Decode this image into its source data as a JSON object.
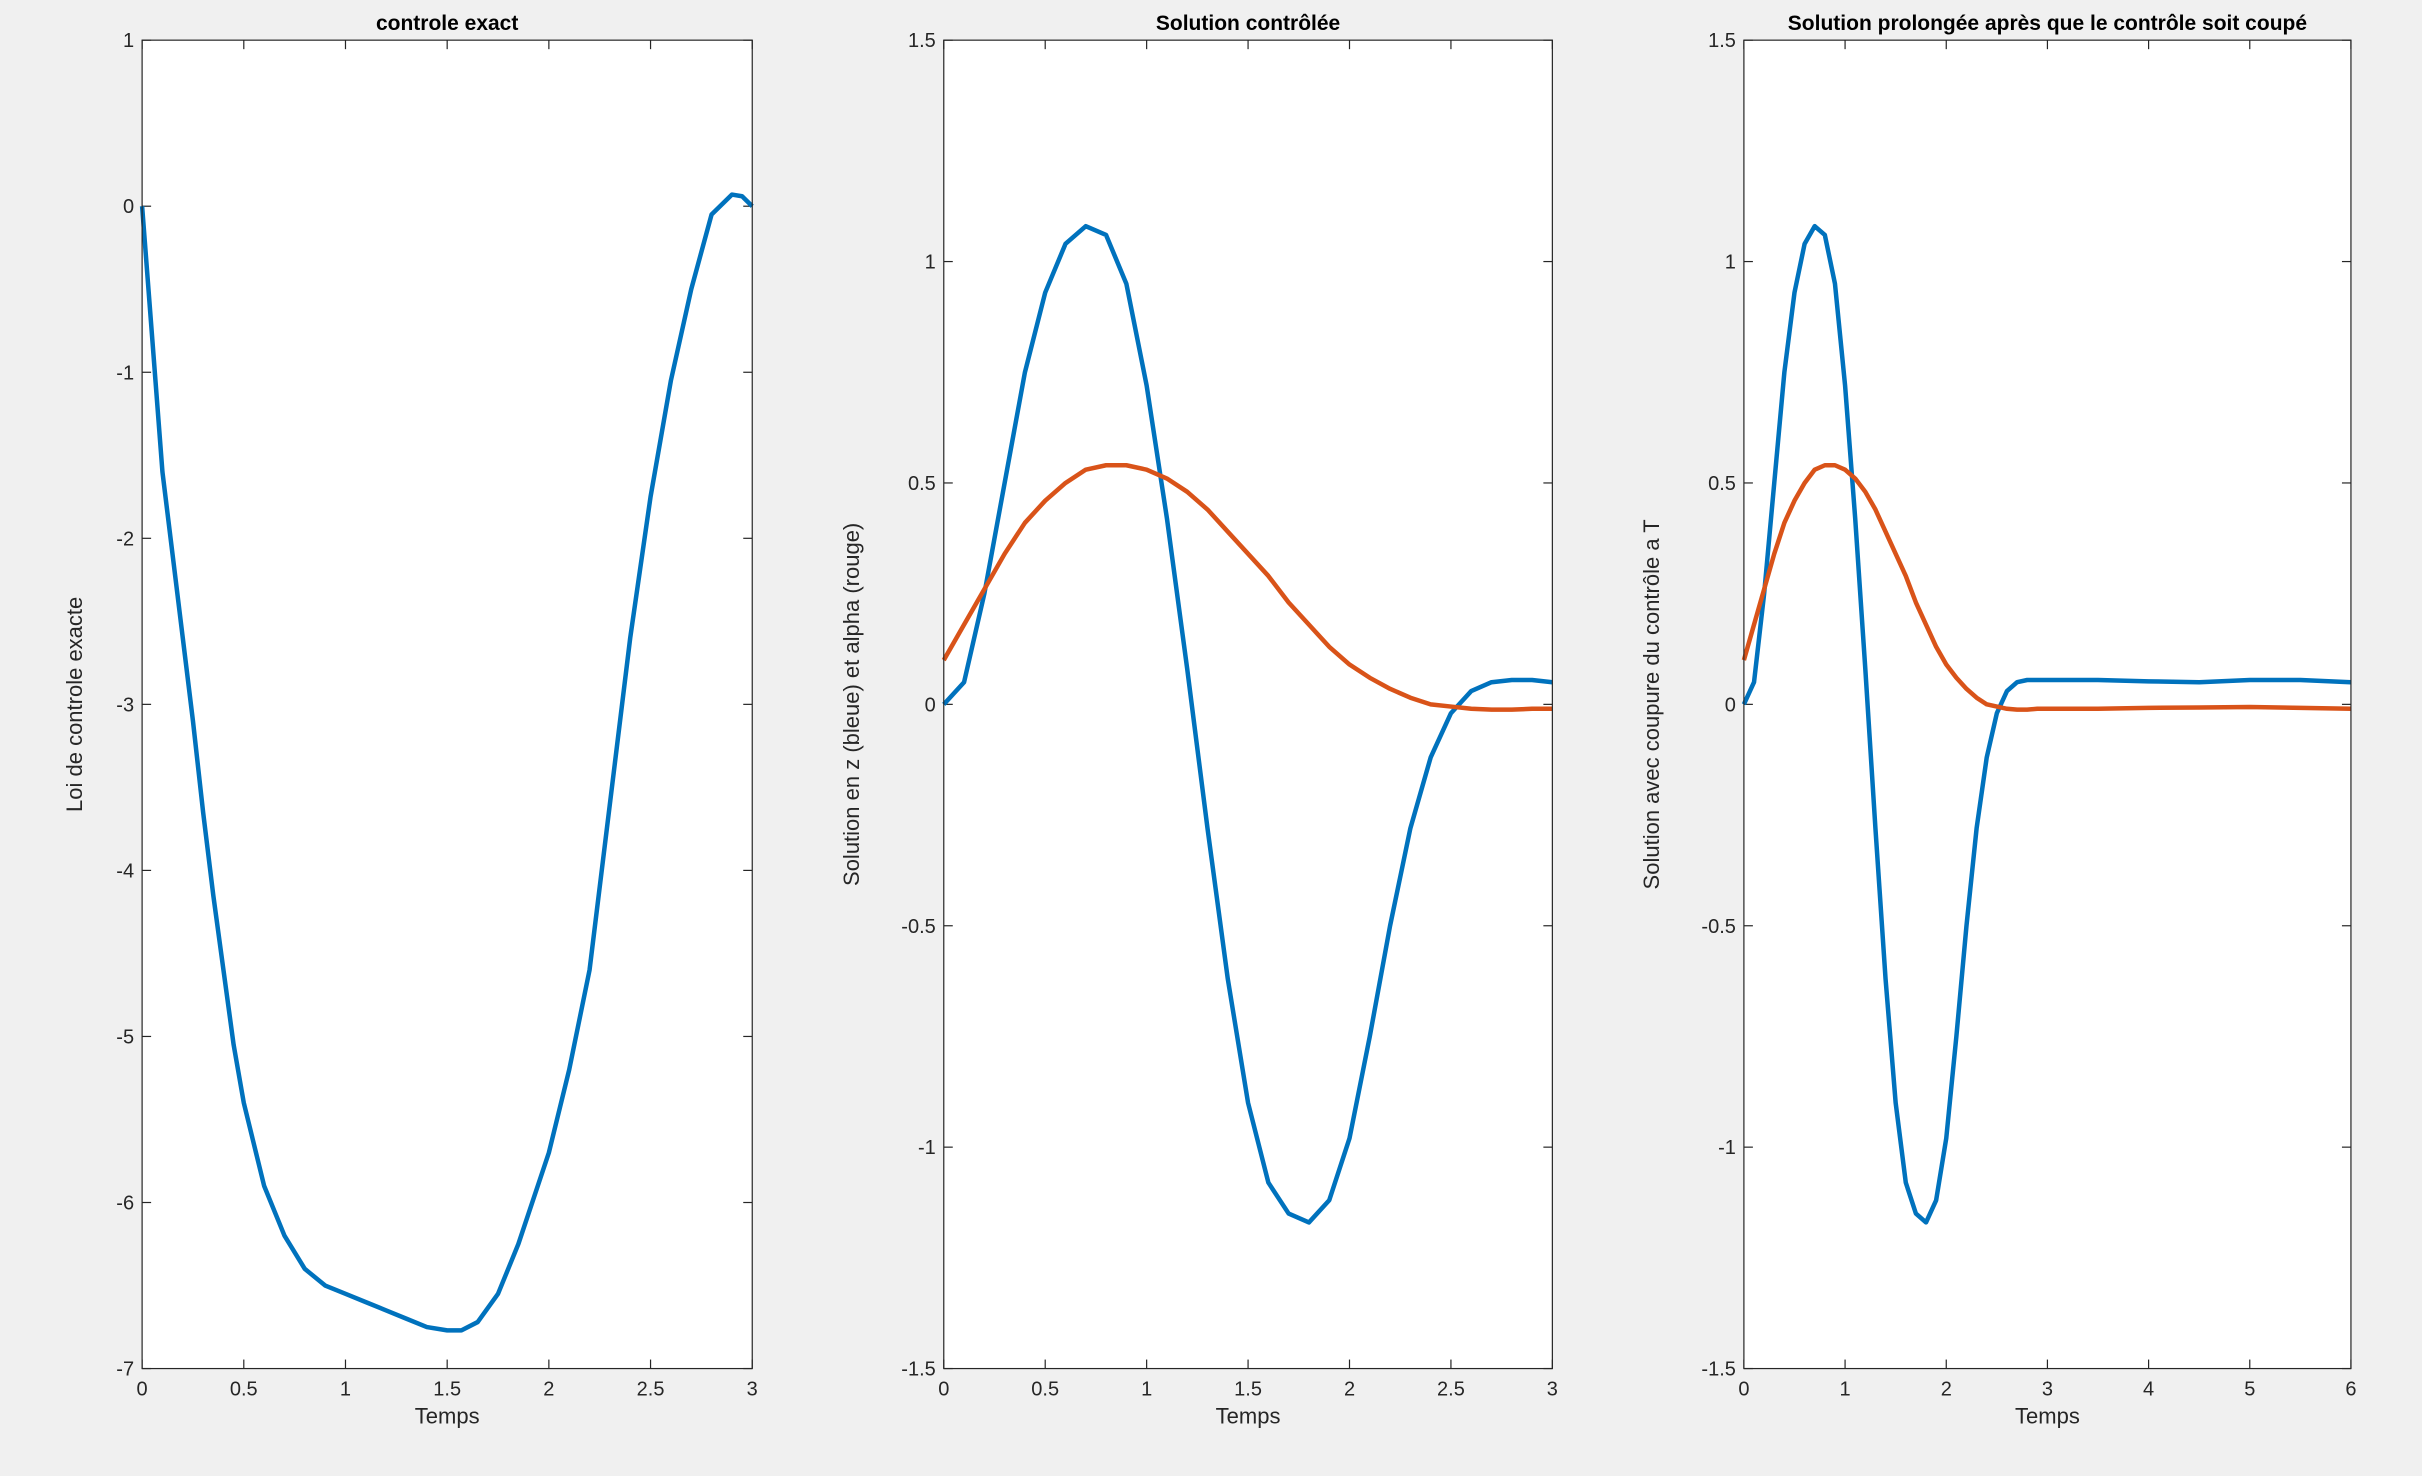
{
  "chart_data": [
    {
      "type": "line",
      "title": "controle exact",
      "xlabel": "Temps",
      "ylabel": "Loi de controle exacte",
      "xlim": [
        0,
        3
      ],
      "xticks": [
        0,
        0.5,
        1,
        1.5,
        2,
        2.5,
        3
      ],
      "ylim": [
        -7,
        1
      ],
      "yticks": [
        -7,
        -6,
        -5,
        -4,
        -3,
        -2,
        -1,
        0,
        1
      ],
      "color": "#0072bd",
      "x": [
        0,
        0.05,
        0.1,
        0.15,
        0.2,
        0.25,
        0.3,
        0.35,
        0.4,
        0.45,
        0.5,
        0.6,
        0.7,
        0.8,
        0.9,
        1.0,
        1.1,
        1.2,
        1.3,
        1.4,
        1.5,
        1.57,
        1.65,
        1.75,
        1.85,
        2.0,
        2.1,
        2.2,
        2.3,
        2.4,
        2.5,
        2.6,
        2.7,
        2.8,
        2.9,
        2.95,
        3.0
      ],
      "values": [
        0,
        -0.8,
        -1.6,
        -2.1,
        -2.6,
        -3.1,
        -3.65,
        -4.15,
        -4.6,
        -5.05,
        -5.4,
        -5.9,
        -6.2,
        -6.4,
        -6.5,
        -6.55,
        -6.6,
        -6.65,
        -6.7,
        -6.75,
        -6.77,
        -6.77,
        -6.72,
        -6.55,
        -6.25,
        -5.7,
        -5.2,
        -4.6,
        -3.6,
        -2.6,
        -1.75,
        -1.05,
        -0.5,
        -0.05,
        0.07,
        0.06,
        0.0
      ]
    },
    {
      "type": "line",
      "title": "Solution contrôlée",
      "xlabel": "Temps",
      "ylabel": "Solution en z (bleue) et alpha (rouge)",
      "xlim": [
        0,
        3
      ],
      "xticks": [
        0,
        0.5,
        1,
        1.5,
        2,
        2.5,
        3
      ],
      "ylim": [
        -1.5,
        1.5
      ],
      "yticks": [
        -1.5,
        -1,
        -0.5,
        0,
        0.5,
        1,
        1.5
      ],
      "x": [
        0,
        0.1,
        0.2,
        0.3,
        0.4,
        0.5,
        0.6,
        0.7,
        0.8,
        0.9,
        1.0,
        1.1,
        1.2,
        1.3,
        1.4,
        1.5,
        1.6,
        1.7,
        1.8,
        1.9,
        2.0,
        2.1,
        2.2,
        2.3,
        2.4,
        2.5,
        2.6,
        2.7,
        2.8,
        2.9,
        3.0
      ],
      "series": [
        {
          "color": "#0072bd",
          "values": [
            0,
            0.05,
            0.25,
            0.5,
            0.75,
            0.93,
            1.04,
            1.08,
            1.06,
            0.95,
            0.72,
            0.42,
            0.08,
            -0.28,
            -0.62,
            -0.9,
            -1.08,
            -1.15,
            -1.17,
            -1.12,
            -0.98,
            -0.75,
            -0.5,
            -0.28,
            -0.12,
            -0.02,
            0.03,
            0.05,
            0.055,
            0.055,
            0.05
          ]
        },
        {
          "color": "#d95319",
          "values": [
            0.1,
            0.18,
            0.26,
            0.34,
            0.41,
            0.46,
            0.5,
            0.53,
            0.54,
            0.54,
            0.53,
            0.51,
            0.48,
            0.44,
            0.39,
            0.34,
            0.29,
            0.23,
            0.18,
            0.13,
            0.09,
            0.06,
            0.035,
            0.015,
            0.0,
            -0.005,
            -0.01,
            -0.012,
            -0.012,
            -0.01,
            -0.01
          ]
        }
      ]
    },
    {
      "type": "line",
      "title": "Solution prolongée après que le contrôle soit coupé",
      "xlabel": "Temps",
      "ylabel": "Solution avec coupure du contrôle a T",
      "xlim": [
        0,
        6
      ],
      "xticks": [
        0,
        1,
        2,
        3,
        4,
        5,
        6
      ],
      "ylim": [
        -1.5,
        1.5
      ],
      "yticks": [
        -1.5,
        -1,
        -0.5,
        0,
        0.5,
        1,
        1.5
      ],
      "x": [
        0,
        0.1,
        0.2,
        0.3,
        0.4,
        0.5,
        0.6,
        0.7,
        0.8,
        0.9,
        1.0,
        1.1,
        1.2,
        1.3,
        1.4,
        1.5,
        1.6,
        1.7,
        1.8,
        1.9,
        2.0,
        2.1,
        2.2,
        2.3,
        2.4,
        2.5,
        2.6,
        2.7,
        2.8,
        2.9,
        3.0,
        3.5,
        4.0,
        4.5,
        5.0,
        5.5,
        6.0
      ],
      "series": [
        {
          "color": "#0072bd",
          "values": [
            0,
            0.05,
            0.25,
            0.5,
            0.75,
            0.93,
            1.04,
            1.08,
            1.06,
            0.95,
            0.72,
            0.42,
            0.08,
            -0.28,
            -0.62,
            -0.9,
            -1.08,
            -1.15,
            -1.17,
            -1.12,
            -0.98,
            -0.75,
            -0.5,
            -0.28,
            -0.12,
            -0.02,
            0.03,
            0.05,
            0.055,
            0.055,
            0.055,
            0.055,
            0.052,
            0.05,
            0.055,
            0.055,
            0.05
          ]
        },
        {
          "color": "#d95319",
          "values": [
            0.1,
            0.18,
            0.26,
            0.34,
            0.41,
            0.46,
            0.5,
            0.53,
            0.54,
            0.54,
            0.53,
            0.51,
            0.48,
            0.44,
            0.39,
            0.34,
            0.29,
            0.23,
            0.18,
            0.13,
            0.09,
            0.06,
            0.035,
            0.015,
            0.0,
            -0.005,
            -0.01,
            -0.012,
            -0.012,
            -0.01,
            -0.01,
            -0.01,
            -0.008,
            -0.007,
            -0.006,
            -0.008,
            -0.01
          ]
        }
      ]
    }
  ]
}
